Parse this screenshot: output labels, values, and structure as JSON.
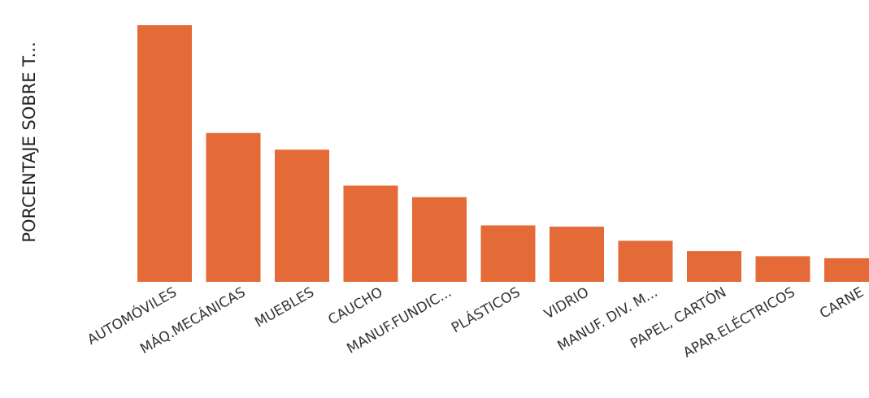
{
  "chart_data": {
    "type": "bar",
    "ylabel": "PORCENTAJE SOBRE T...",
    "xlabel": "",
    "categories": [
      "AUTOMÓVILES",
      "MÁQ.MECÁNICAS",
      "MUEBLES",
      "CAUCHO",
      "MANUF.FUNDIC...",
      "PLÁSTICOS",
      "VIDRIO",
      "MANUF. DIV. M...",
      "PAPEL, CARTÓN",
      "APAR.ELÉCTRICOS",
      "CARNE"
    ],
    "values": [
      100,
      58,
      51.5,
      37.5,
      33,
      22,
      21.5,
      16,
      12,
      10,
      9.2
    ],
    "ylim": [
      0,
      100
    ],
    "grid": false,
    "color": "#e46b37"
  }
}
